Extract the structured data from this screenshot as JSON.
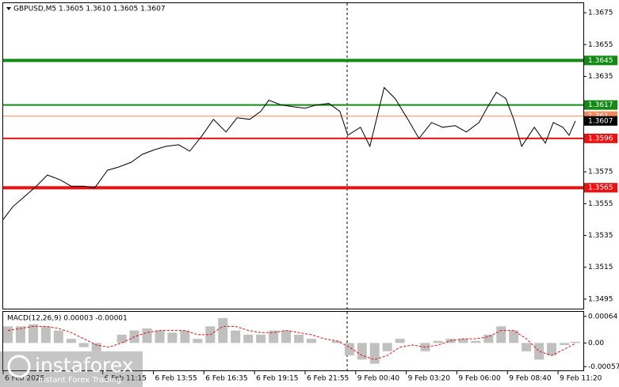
{
  "chart_data": [
    {
      "type": "line",
      "title": "GBPUSD,M5  1.3605 1.3610 1.3605 1.3607",
      "x": [
        0,
        6,
        13,
        21,
        28,
        36,
        43,
        51,
        58,
        66,
        73,
        81,
        88,
        96,
        103,
        111,
        118,
        126,
        133,
        141,
        148,
        156,
        163,
        168,
        176,
        183,
        191,
        198,
        206,
        213,
        218,
        226,
        232,
        241,
        248,
        256,
        263,
        271,
        278,
        286,
        293,
        301,
        306,
        312,
        318,
        323,
        328,
        336,
        343,
        348,
        354,
        358,
        362
      ],
      "series": [
        {
          "color": "#000000",
          "values": [
            1.3545,
            1.3553,
            1.3559,
            1.3566,
            1.3573,
            1.357,
            1.3566,
            1.3566,
            1.3565,
            1.3576,
            1.3578,
            1.3581,
            1.3586,
            1.3589,
            1.3591,
            1.3592,
            1.3588,
            1.3598,
            1.3608,
            1.36,
            1.3609,
            1.3608,
            1.3613,
            1.362,
            1.3617,
            1.3616,
            1.3615,
            1.3617,
            1.3618,
            1.3613,
            1.3598,
            1.3603,
            1.3591,
            1.3628,
            1.3621,
            1.3608,
            1.3596,
            1.3606,
            1.3603,
            1.3604,
            1.36,
            1.3606,
            1.3615,
            1.3625,
            1.3621,
            1.3608,
            1.3591,
            1.3603,
            1.3593,
            1.3606,
            1.3603,
            1.3598,
            1.3607
          ]
        }
      ],
      "xlim": [
        0,
        367
      ],
      "ylim": [
        1.3489,
        1.3681
      ],
      "yticks": [
        1.3675,
        1.3655,
        1.3635,
        1.3575,
        1.3555,
        1.3535,
        1.3515,
        1.3495
      ],
      "xticks": [
        {
          "value": 0,
          "label": "6 Feb 2025"
        },
        {
          "value": 63,
          "label": "6 Feb 11:15"
        },
        {
          "value": 95,
          "label": "6 Feb 13:55"
        },
        {
          "value": 127,
          "label": "6 Feb 16:35"
        },
        {
          "value": 159,
          "label": "6 Feb 19:15"
        },
        {
          "value": 191,
          "label": "6 Feb 21:55"
        },
        {
          "value": 223,
          "label": "9 Feb 00:40"
        },
        {
          "value": 255,
          "label": "9 Feb 03:20"
        },
        {
          "value": 287,
          "label": "9 Feb 06:00"
        },
        {
          "value": 319,
          "label": "9 Feb 08:40"
        },
        {
          "value": 351,
          "label": "9 Feb 11:20"
        }
      ],
      "hlines": [
        {
          "value": 1.3645,
          "color": "#138a13",
          "style": "thick"
        },
        {
          "value": 1.3617,
          "color": "#138a13",
          "style": "medium"
        },
        {
          "value": 1.361,
          "color": "#f08a5d",
          "style": "thin"
        },
        {
          "value": 1.3607,
          "color": "#000000",
          "style": "none"
        },
        {
          "value": 1.3596,
          "color": "#ee1111",
          "style": "medium"
        },
        {
          "value": 1.3565,
          "color": "#ee1111",
          "style": "thick"
        }
      ]
    },
    {
      "type": "bar",
      "title": "MACD(12,26,9) 0.00003 -0.00001",
      "x": [
        3,
        11,
        19,
        27,
        35,
        43,
        51,
        59,
        67,
        75,
        83,
        91,
        99,
        107,
        115,
        123,
        131,
        139,
        147,
        155,
        163,
        171,
        179,
        187,
        195,
        203,
        211,
        219,
        227,
        235,
        243,
        251,
        259,
        267,
        275,
        283,
        291,
        299,
        307,
        315,
        323,
        331,
        339,
        347,
        355,
        362
      ],
      "series": [
        {
          "color": "#c0c0c0",
          "values": [
            0.0004,
            0.0004,
            0.00045,
            0.0004,
            0.0003,
            0.0001,
            -0.0001,
            -0.0002,
            0.0,
            0.0002,
            0.0003,
            0.00035,
            0.0003,
            0.00025,
            0.0003,
            0.0001,
            0.0004,
            0.0006,
            0.0003,
            0.0002,
            0.0002,
            0.0003,
            0.0003,
            0.0002,
            0.0001,
            0.0,
            5e-05,
            -0.0003,
            -0.0004,
            -0.0005,
            -0.0002,
            0.0001,
            0.0,
            -0.0002,
            5e-05,
            0.0001,
            0.0001,
            5e-05,
            0.0002,
            0.0004,
            0.0003,
            -0.0002,
            -0.0004,
            -0.0003,
            -5e-05,
            3e-05
          ]
        },
        {
          "color": "#e01010",
          "values": [
            0.0003,
            0.00035,
            0.0004,
            0.0004,
            0.00035,
            0.00025,
            0.0001,
            -5e-05,
            -0.0001,
            0.0,
            0.00015,
            0.00025,
            0.0003,
            0.0003,
            0.0003,
            0.0002,
            0.0002,
            0.0004,
            0.0004,
            0.0003,
            0.00025,
            0.00025,
            0.0003,
            0.00025,
            0.0002,
            0.0001,
            5e-05,
            -0.0001,
            -0.0003,
            -0.0004,
            -0.0003,
            -0.0001,
            -5e-05,
            -0.0001,
            -5e-05,
            5e-05,
            0.0001,
            0.0001,
            0.00015,
            0.0003,
            0.0003,
            0.0001,
            -0.0002,
            -0.0003,
            -0.00015,
            -1e-05
          ]
        }
      ],
      "xlim": [
        0,
        367
      ],
      "ylim": [
        -0.00066,
        0.00075
      ],
      "yticks": [
        0.00064,
        {
          "value": 0,
          "label": "0.00"
        },
        -0.00057
      ]
    }
  ],
  "watermark": {
    "brand": "instaforex",
    "tagline": "Instant Forex Trading"
  }
}
